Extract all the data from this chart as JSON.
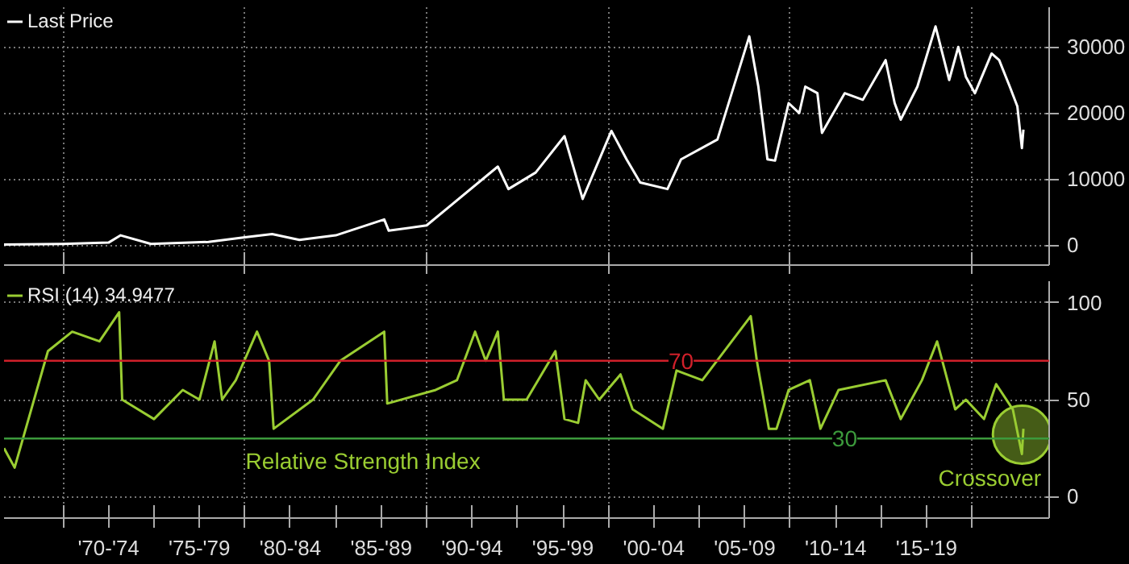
{
  "chart_data": [
    {
      "type": "line",
      "xlim": [
        "1966-10",
        "2024-04"
      ],
      "ylim": [
        -3000,
        36000
      ],
      "yticks": [
        0,
        10000,
        20000,
        30000
      ],
      "xticks": [
        {
          "value": "1970-01",
          "label": null
        },
        {
          "value": "1980-01",
          "label": null
        },
        {
          "value": "1990-01",
          "label": null
        },
        {
          "value": "2000-01",
          "label": null
        },
        {
          "value": "2010-01",
          "label": null
        },
        {
          "value": "2020-01",
          "label": null
        }
      ],
      "tick_labels": "y",
      "grid": true,
      "legend": "top left",
      "x": [
        "1966-10",
        "1970-01",
        "1972-07",
        "1973-03",
        "1974-11",
        "1978-01",
        "1980-01",
        "1981-07",
        "1983-01",
        "1985-01",
        "1987-09",
        "1987-12",
        "1990-01",
        "1993-12",
        "1994-07",
        "1996-01",
        "1997-08",
        "1998-08",
        "2000-03",
        "2001-01",
        "2001-10",
        "2003-04",
        "2004-01",
        "2006-01",
        "2007-10",
        "2008-04",
        "2008-10",
        "2009-03",
        "2009-12",
        "2010-07",
        "2010-11",
        "2011-07",
        "2011-10",
        "2013-01",
        "2014-01",
        "2015-04",
        "2015-10",
        "2016-02",
        "2017-01",
        "2018-01",
        "2018-10",
        "2019-04",
        "2019-09",
        "2020-03",
        "2021-02",
        "2021-07",
        "2022-02",
        "2022-07",
        "2022-10",
        "2022-11"
      ],
      "series": [
        {
          "name": "Last Price",
          "color": "#ffffff",
          "values": [
            100,
            200,
            400,
            1500,
            200,
            500,
            1200,
            1700,
            800,
            1500,
            3900,
            2200,
            3000,
            11900,
            8500,
            11000,
            16500,
            7000,
            17300,
            13000,
            9500,
            8500,
            13000,
            16000,
            31600,
            24000,
            13000,
            12800,
            21500,
            20000,
            24000,
            23000,
            17000,
            23000,
            22000,
            28000,
            21500,
            19000,
            24000,
            33100,
            25000,
            30000,
            25500,
            23000,
            29000,
            28000,
            24000,
            21000,
            14700,
            17500
          ]
        }
      ]
    },
    {
      "type": "line",
      "xlim": [
        "1966-10",
        "2024-04"
      ],
      "ylim": [
        -11,
        111
      ],
      "yticks": [
        0,
        50,
        100
      ],
      "xticks": [
        {
          "value": "1970-01",
          "label": null
        },
        {
          "value": "1972-07",
          "label": "'70-'74"
        },
        {
          "value": "1975-01",
          "label": null
        },
        {
          "value": "1977-07",
          "label": "'75-'79"
        },
        {
          "value": "1980-01",
          "label": null
        },
        {
          "value": "1982-07",
          "label": "'80-'84"
        },
        {
          "value": "1985-01",
          "label": null
        },
        {
          "value": "1987-07",
          "label": "'85-'89"
        },
        {
          "value": "1990-01",
          "label": null
        },
        {
          "value": "1992-07",
          "label": "'90-'94"
        },
        {
          "value": "1995-01",
          "label": null
        },
        {
          "value": "1997-07",
          "label": "'95-'99"
        },
        {
          "value": "2000-01",
          "label": null
        },
        {
          "value": "2002-07",
          "label": "'00-'04"
        },
        {
          "value": "2005-01",
          "label": null
        },
        {
          "value": "2007-07",
          "label": "'05-'09"
        },
        {
          "value": "2010-01",
          "label": null
        },
        {
          "value": "2012-07",
          "label": "'10-'14"
        },
        {
          "value": "2015-01",
          "label": null
        },
        {
          "value": "2017-07",
          "label": "'15-'19"
        },
        {
          "value": "2020-01",
          "label": null
        }
      ],
      "grid": true,
      "legend": "top left",
      "x": [
        "1966-10",
        "1967-05",
        "1969-03",
        "1970-07",
        "1972-01",
        "1973-02",
        "1973-04",
        "1975-01",
        "1976-08",
        "1977-07",
        "1978-05",
        "1978-10",
        "1979-07",
        "1980-09",
        "1981-05",
        "1981-08",
        "1983-10",
        "1985-04",
        "1987-09",
        "1987-11",
        "1990-07",
        "1991-09",
        "1992-09",
        "1993-04",
        "1993-12",
        "1994-04",
        "1995-07",
        "1997-02",
        "1997-08",
        "1998-05",
        "1998-10",
        "1999-07",
        "2000-09",
        "2001-05",
        "2003-01",
        "2003-10",
        "2005-03",
        "2007-11",
        "2008-03",
        "2008-11",
        "2009-04",
        "2009-12",
        "2011-02",
        "2011-09",
        "2012-09",
        "2015-04",
        "2016-02",
        "2017-04",
        "2018-02",
        "2019-02",
        "2019-09",
        "2020-09",
        "2021-05",
        "2022-04",
        "2022-10",
        "2022-11"
      ],
      "series": [
        {
          "name": "RSI (14) 34.9477",
          "color": "#9acd32",
          "values": [
            25,
            15,
            75,
            85,
            80,
            95,
            50,
            40,
            55,
            50,
            80,
            50,
            60,
            85,
            70,
            35,
            50,
            70,
            85,
            48,
            55,
            60,
            85,
            70,
            85,
            50,
            50,
            75,
            40,
            38,
            60,
            50,
            63,
            45,
            35,
            65,
            60,
            93,
            70,
            35,
            35,
            55,
            60,
            35,
            55,
            60,
            40,
            60,
            80,
            45,
            50,
            40,
            58,
            45,
            22,
            35
          ]
        }
      ],
      "ref_lines": [
        {
          "axis": "y",
          "value": 70,
          "label": "70",
          "color": "#d0202a"
        },
        {
          "axis": "y",
          "value": 30,
          "label": "30",
          "color": "#3c9a3c"
        }
      ],
      "annotations": [
        "Relative Strength Index",
        {
          "text": "Crossover",
          "x": "2022-10",
          "y": 32
        }
      ]
    }
  ]
}
